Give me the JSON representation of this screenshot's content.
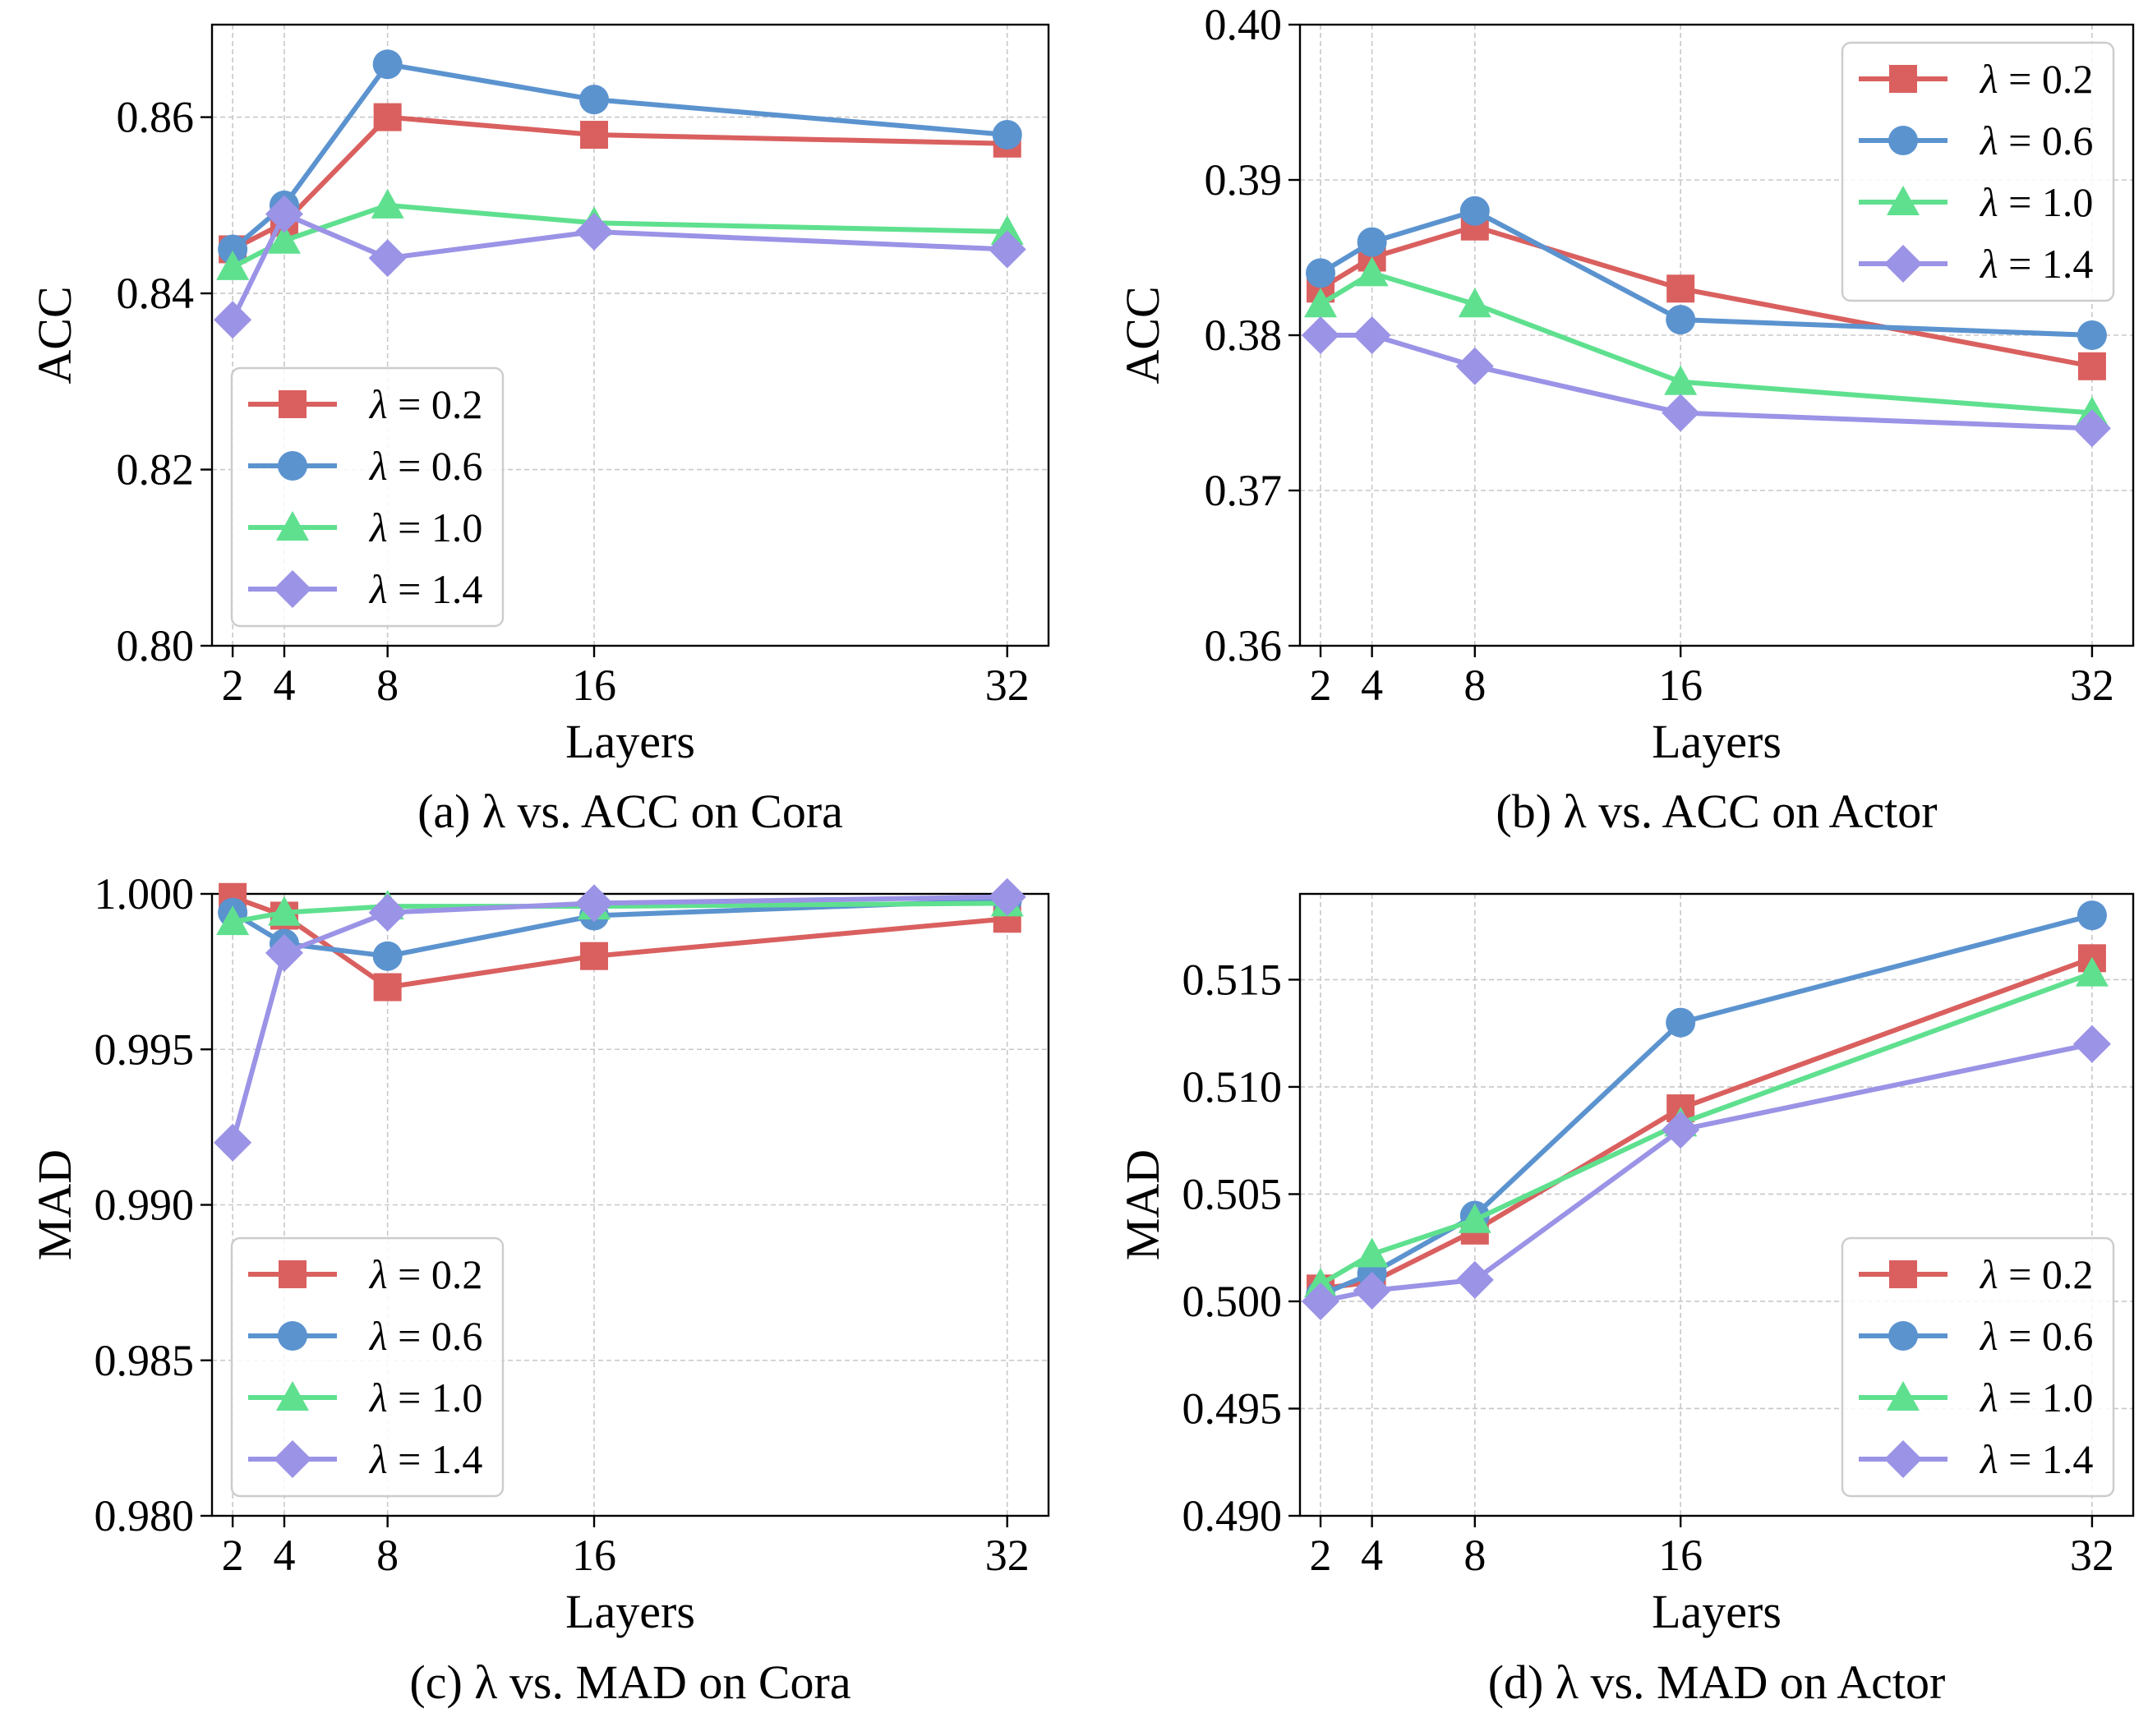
{
  "lambda_symbol": "λ",
  "series_colors": {
    "λ=0.2": "#d9605f",
    "λ=0.6": "#5b93cf",
    "λ=1.0": "#5fe08f",
    "λ=1.4": "#9a93e6"
  },
  "series_markers": {
    "λ=0.2": "square",
    "λ=0.6": "circle",
    "λ=1.0": "triangle",
    "λ=1.4": "diamond"
  },
  "chart_data": [
    {
      "type": "line",
      "caption": "(a) λ vs. ACC on Cora",
      "xlabel": "Layers",
      "ylabel": "ACC",
      "x": [
        2,
        4,
        8,
        16,
        32
      ],
      "xticks": [
        "2",
        "4",
        "8",
        "16",
        "32"
      ],
      "xlim": [
        1.2,
        33.6
      ],
      "ylim": [
        0.8,
        0.8705
      ],
      "yticks": [
        "0.80",
        "0.82",
        "0.84",
        "0.86"
      ],
      "ytick_values": [
        0.8,
        0.82,
        0.84,
        0.86
      ],
      "legend_position": "lower-left",
      "series": [
        {
          "name": "λ=0.2",
          "values": [
            0.845,
            0.848,
            0.86,
            0.858,
            0.857
          ]
        },
        {
          "name": "λ=0.6",
          "values": [
            0.845,
            0.85,
            0.866,
            0.862,
            0.858
          ]
        },
        {
          "name": "λ=1.0",
          "values": [
            0.843,
            0.846,
            0.85,
            0.848,
            0.847
          ]
        },
        {
          "name": "λ=1.4",
          "values": [
            0.837,
            0.849,
            0.844,
            0.847,
            0.845
          ]
        }
      ]
    },
    {
      "type": "line",
      "caption": "(b) λ vs. ACC on Actor",
      "xlabel": "Layers",
      "ylabel": "ACC",
      "x": [
        2,
        4,
        8,
        16,
        32
      ],
      "xticks": [
        "2",
        "4",
        "8",
        "16",
        "32"
      ],
      "xlim": [
        1.2,
        33.6
      ],
      "ylim": [
        0.36,
        0.4
      ],
      "yticks": [
        "0.36",
        "0.37",
        "0.38",
        "0.39",
        "0.40"
      ],
      "ytick_values": [
        0.36,
        0.37,
        0.38,
        0.39,
        0.4
      ],
      "legend_position": "upper-right",
      "series": [
        {
          "name": "λ=0.2",
          "values": [
            0.383,
            0.385,
            0.387,
            0.383,
            0.378
          ]
        },
        {
          "name": "λ=0.6",
          "values": [
            0.384,
            0.386,
            0.388,
            0.381,
            0.38
          ]
        },
        {
          "name": "λ=1.0",
          "values": [
            0.382,
            0.384,
            0.382,
            0.377,
            0.375
          ]
        },
        {
          "name": "λ=1.4",
          "values": [
            0.38,
            0.38,
            0.378,
            0.375,
            0.374
          ]
        }
      ]
    },
    {
      "type": "line",
      "caption": "(c) λ vs. MAD on Cora",
      "xlabel": "Layers",
      "ylabel": "MAD",
      "x": [
        2,
        4,
        8,
        16,
        32
      ],
      "xticks": [
        "2",
        "4",
        "8",
        "16",
        "32"
      ],
      "xlim": [
        1.2,
        33.6
      ],
      "ylim": [
        0.98,
        1.0
      ],
      "yticks": [
        "0.980",
        "0.985",
        "0.990",
        "0.995",
        "1.000"
      ],
      "ytick_values": [
        0.98,
        0.985,
        0.99,
        0.995,
        1.0
      ],
      "legend_position": "lower-left",
      "series": [
        {
          "name": "λ=0.2",
          "values": [
            0.9999,
            0.9993,
            0.997,
            0.998,
            0.9992
          ]
        },
        {
          "name": "λ=0.6",
          "values": [
            0.9994,
            0.9984,
            0.998,
            0.9993,
            0.9998
          ]
        },
        {
          "name": "λ=1.0",
          "values": [
            0.9991,
            0.9994,
            0.9996,
            0.9996,
            0.9997
          ]
        },
        {
          "name": "λ=1.4",
          "values": [
            0.992,
            0.9981,
            0.9994,
            0.9997,
            0.9999
          ]
        }
      ]
    },
    {
      "type": "line",
      "caption": "(d) λ vs. MAD on Actor",
      "xlabel": "Layers",
      "ylabel": "MAD",
      "x": [
        2,
        4,
        8,
        16,
        32
      ],
      "xticks": [
        "2",
        "4",
        "8",
        "16",
        "32"
      ],
      "xlim": [
        1.2,
        33.6
      ],
      "ylim": [
        0.49,
        0.519
      ],
      "yticks": [
        "0.490",
        "0.495",
        "0.500",
        "0.505",
        "0.510",
        "0.515"
      ],
      "ytick_values": [
        0.49,
        0.495,
        0.5,
        0.505,
        0.51,
        0.515
      ],
      "legend_position": "lower-right",
      "series": [
        {
          "name": "λ=0.2",
          "values": [
            0.5006,
            0.5009,
            0.5033,
            0.509,
            0.516
          ]
        },
        {
          "name": "λ=0.6",
          "values": [
            0.5003,
            0.5013,
            0.504,
            0.513,
            0.518
          ]
        },
        {
          "name": "λ=1.0",
          "values": [
            0.5008,
            0.5022,
            0.5038,
            0.5083,
            0.5153
          ]
        },
        {
          "name": "λ=1.4",
          "values": [
            0.5,
            0.5005,
            0.501,
            0.508,
            0.512
          ]
        }
      ]
    }
  ]
}
